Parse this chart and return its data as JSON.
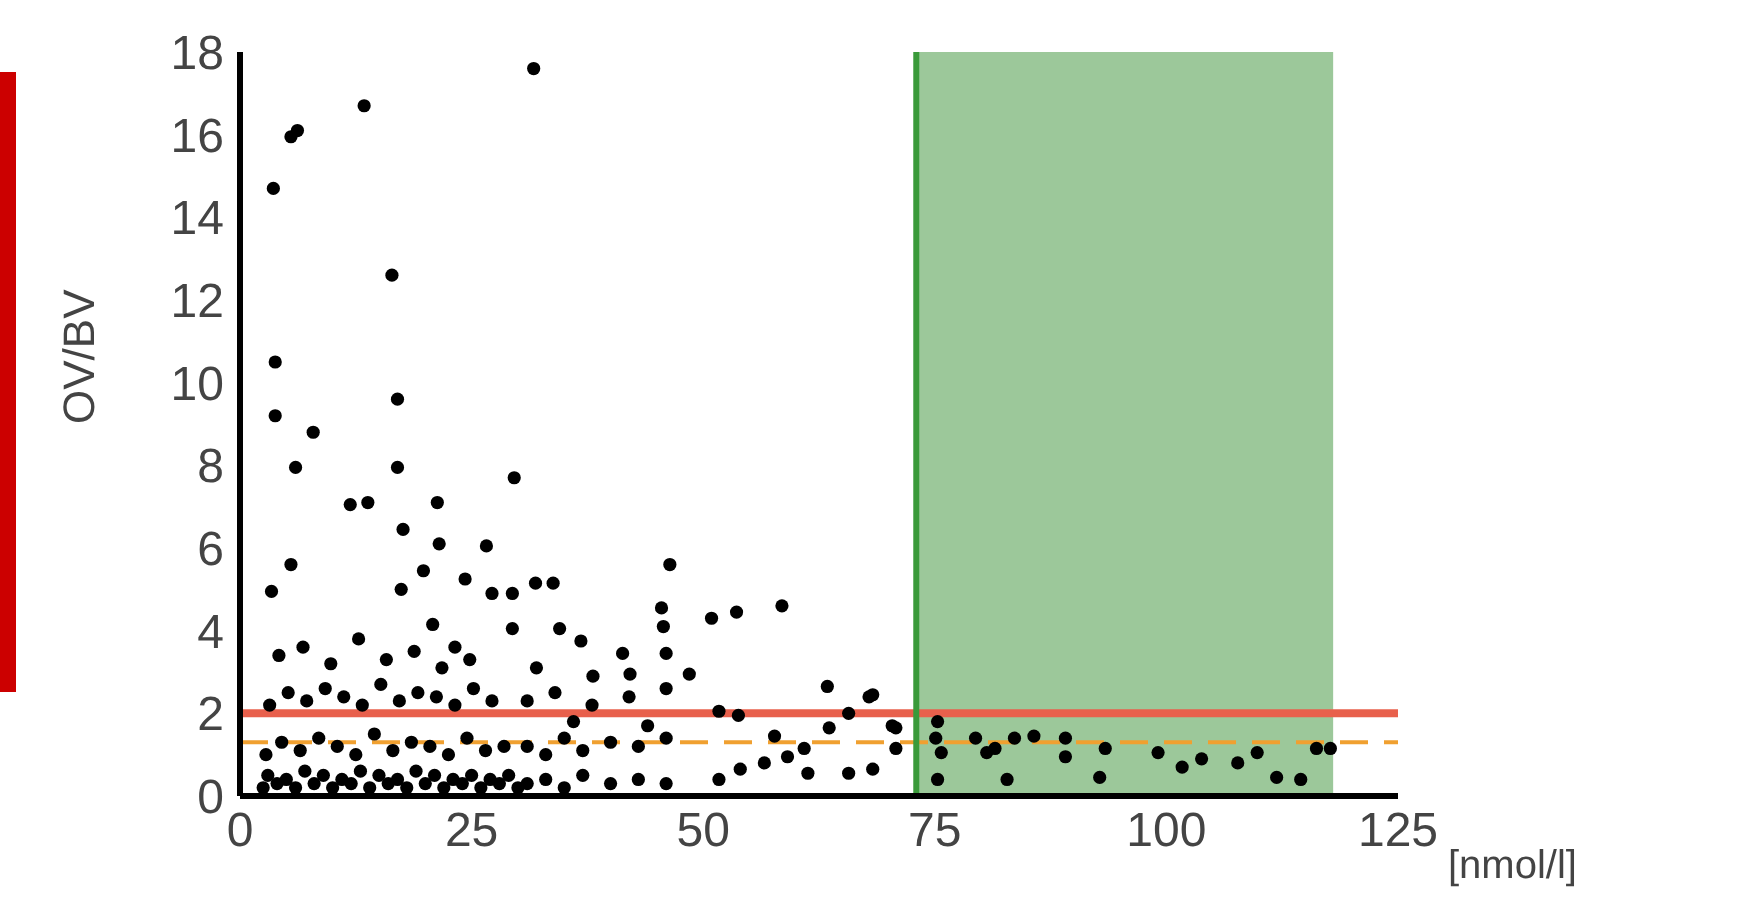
{
  "chart_data": {
    "type": "scatter",
    "xlabel": "[nmol/l]",
    "ylabel": "OV/BV",
    "xlim": [
      0,
      125
    ],
    "ylim": [
      0,
      18
    ],
    "xticks": [
      0,
      25,
      50,
      75,
      100,
      125
    ],
    "yticks": [
      0,
      2,
      4,
      6,
      8,
      10,
      12,
      14,
      16,
      18
    ],
    "grid": false,
    "legend": false,
    "marker": "circle",
    "ref_lines": [
      {
        "axis": "y",
        "value": 2,
        "color": "#e8604c",
        "line_style": "solid"
      },
      {
        "axis": "y",
        "value": 1.3,
        "color": "#f0a030",
        "line_style": "dashed"
      },
      {
        "axis": "x",
        "value": 73,
        "color": "#3a9a3a",
        "line_style": "solid"
      }
    ],
    "bands": [
      {
        "axis": "x",
        "from": 73,
        "to": 118,
        "color": "#9cc89a"
      }
    ],
    "series": [
      {
        "color": "#000000",
        "x": [
          31.7,
          13.4,
          6.2,
          5.5,
          3.6,
          16.4,
          3.8,
          17,
          3.8,
          7.9,
          6,
          17,
          21.3,
          29.6,
          11.9,
          13.8,
          17.6,
          21.5,
          26.6,
          46.4,
          3.4,
          5.5,
          19.8,
          24.3,
          27.2,
          29.4,
          31.9,
          33.8,
          17.4,
          20.8,
          23.2,
          29.4,
          34.5,
          36.8,
          45.5,
          45.7,
          50.9,
          53.6,
          58.5,
          41.3,
          46,
          48.5,
          38.1,
          42.1,
          63.4,
          68.3,
          65.7,
          63.6,
          70.8,
          70.8,
          68.3,
          65.7,
          51.7,
          53.8,
          57.7,
          60.9,
          51.7,
          54,
          56.6,
          59.1,
          61.3,
          67.9,
          70.4,
          75.3,
          75.1,
          79.4,
          81.5,
          83.6,
          85.7,
          89.1,
          89.1,
          93.4,
          99.1,
          101.7,
          103.8,
          107.7,
          109.8,
          116.2,
          117.7,
          75.3,
          82.8,
          92.8,
          111.9,
          114.5,
          75.7,
          80.6,
          2.5,
          3,
          4,
          5,
          6,
          7,
          8,
          9,
          10,
          11,
          12,
          13,
          14,
          15,
          16,
          17,
          18,
          19,
          20,
          21,
          22,
          23,
          24,
          25,
          26,
          27,
          28,
          29,
          30,
          2.8,
          4.5,
          6.5,
          8.5,
          10.5,
          12.5,
          14.5,
          16.5,
          18.5,
          20.5,
          22.5,
          24.5,
          26.5,
          28.5,
          3.2,
          5.2,
          7.2,
          9.2,
          11.2,
          13.2,
          15.2,
          17.2,
          19.2,
          21.2,
          23.2,
          25.2,
          27.2,
          4.2,
          6.8,
          9.8,
          12.8,
          15.8,
          18.8,
          21.8,
          24.8,
          31,
          33,
          35,
          37,
          40,
          43,
          46,
          31,
          33,
          35,
          37,
          40,
          43,
          46,
          31,
          34,
          38,
          42,
          46,
          32,
          36,
          44
        ],
        "values": [
          17.6,
          16.7,
          16.1,
          15.95,
          14.7,
          12.6,
          10.5,
          9.6,
          9.2,
          8.8,
          7.95,
          7.95,
          7.1,
          7.7,
          7.05,
          7.1,
          6.45,
          6.1,
          6.05,
          5.6,
          4.95,
          5.6,
          5.45,
          5.25,
          4.9,
          4.9,
          5.15,
          5.15,
          5,
          4.15,
          3.6,
          4.05,
          4.05,
          3.75,
          4.55,
          4.1,
          4.3,
          4.45,
          4.6,
          3.45,
          3.45,
          2.95,
          2.9,
          2.95,
          2.65,
          2.45,
          2,
          1.65,
          1.65,
          1.15,
          0.65,
          0.55,
          2.05,
          1.95,
          1.45,
          1.15,
          0.4,
          0.65,
          0.8,
          0.95,
          0.55,
          2.4,
          1.7,
          1.8,
          1.4,
          1.4,
          1.15,
          1.4,
          1.45,
          1.4,
          0.95,
          1.15,
          1.05,
          0.7,
          0.9,
          0.8,
          1.05,
          1.15,
          1.15,
          0.4,
          0.4,
          0.45,
          0.45,
          0.4,
          1.05,
          1.05,
          0.2,
          0.5,
          0.3,
          0.4,
          0.2,
          0.6,
          0.3,
          0.5,
          0.2,
          0.4,
          0.3,
          0.6,
          0.2,
          0.5,
          0.3,
          0.4,
          0.2,
          0.6,
          0.3,
          0.5,
          0.2,
          0.4,
          0.3,
          0.5,
          0.2,
          0.4,
          0.3,
          0.5,
          0.2,
          1,
          1.3,
          1.1,
          1.4,
          1.2,
          1,
          1.5,
          1.1,
          1.3,
          1.2,
          1,
          1.4,
          1.1,
          1.2,
          2.2,
          2.5,
          2.3,
          2.6,
          2.4,
          2.2,
          2.7,
          2.3,
          2.5,
          2.4,
          2.2,
          2.6,
          2.3,
          3.4,
          3.6,
          3.2,
          3.8,
          3.3,
          3.5,
          3.1,
          3.3,
          0.3,
          0.4,
          0.2,
          0.5,
          0.3,
          0.4,
          0.3,
          1.2,
          1,
          1.4,
          1.1,
          1.3,
          1.2,
          1.4,
          2.3,
          2.5,
          2.2,
          2.4,
          2.6,
          3.1,
          1.8,
          1.7
        ]
      }
    ]
  }
}
